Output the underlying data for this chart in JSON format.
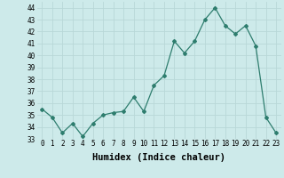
{
  "x": [
    0,
    1,
    2,
    3,
    4,
    5,
    6,
    7,
    8,
    9,
    10,
    11,
    12,
    13,
    14,
    15,
    16,
    17,
    18,
    19,
    20,
    21,
    22,
    23
  ],
  "y": [
    35.5,
    34.8,
    33.5,
    34.3,
    33.2,
    34.3,
    35.0,
    35.2,
    35.3,
    36.5,
    35.3,
    37.5,
    38.3,
    41.2,
    40.2,
    41.2,
    43.0,
    44.0,
    42.5,
    41.8,
    42.5,
    40.8,
    34.8,
    33.5
  ],
  "line_color": "#2e7d6e",
  "marker": "D",
  "marker_size": 2.0,
  "bg_color": "#cdeaea",
  "grid_color": "#b8d8d8",
  "xlabel": "Humidex (Indice chaleur)",
  "ylim": [
    33,
    44.5
  ],
  "xlim": [
    -0.5,
    23.5
  ],
  "yticks": [
    33,
    34,
    35,
    36,
    37,
    38,
    39,
    40,
    41,
    42,
    43,
    44
  ],
  "xticks": [
    0,
    1,
    2,
    3,
    4,
    5,
    6,
    7,
    8,
    9,
    10,
    11,
    12,
    13,
    14,
    15,
    16,
    17,
    18,
    19,
    20,
    21,
    22,
    23
  ],
  "tick_fontsize": 5.5,
  "xlabel_fontsize": 7.5
}
